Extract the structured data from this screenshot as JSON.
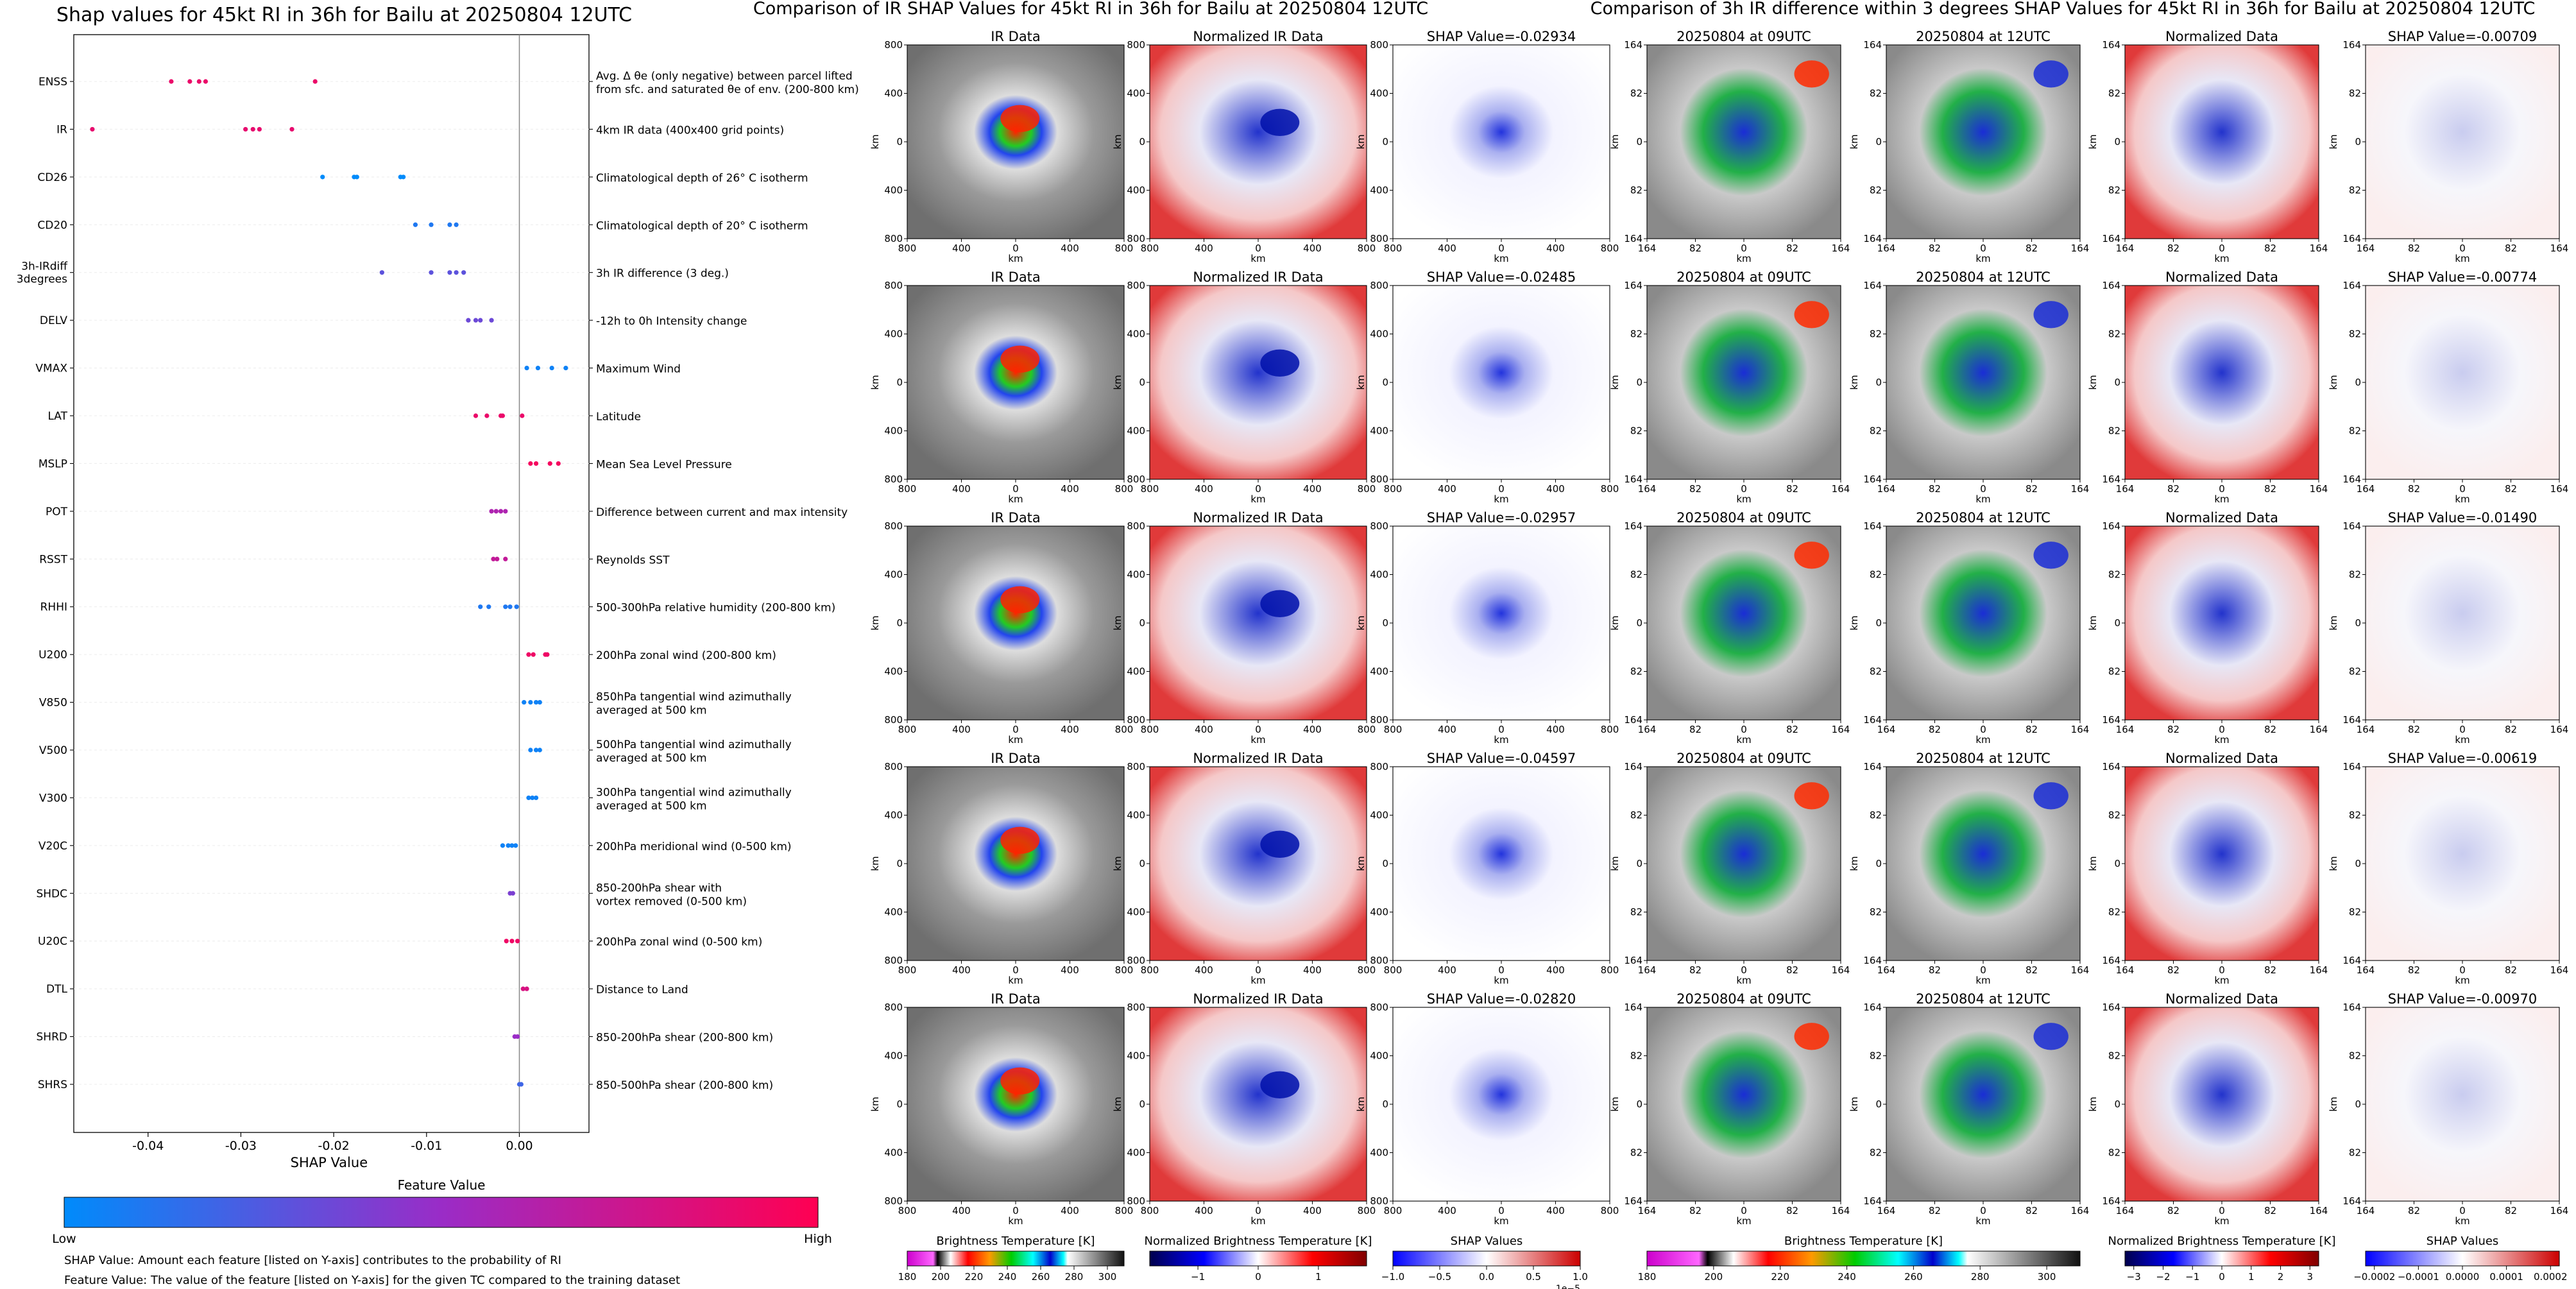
{
  "chart_data": [
    {
      "type": "scatter",
      "title": "Shap values for 45kt RI in 36h for Bailu at 20250804 12UTC",
      "xlabel": "SHAP Value",
      "xlim": [
        -0.048,
        0.0075
      ],
      "x_ticks": [
        "-0.04",
        "-0.03",
        "-0.02",
        "-0.01",
        "0.00"
      ],
      "x_tick_values": [
        -0.04,
        -0.03,
        -0.02,
        -0.01,
        0.0
      ],
      "features": [
        {
          "name": "ENSS",
          "desc": "Avg. Δ θe (only negative) between parcel lifted|from sfc. and saturated θe of env. (200-800 km)",
          "values": [
            -0.0375,
            -0.0355,
            -0.0345,
            -0.0338,
            -0.022
          ],
          "feature_level": 0.9
        },
        {
          "name": "IR",
          "desc": "4km IR data (400x400 grid points)",
          "values": [
            -0.046,
            -0.0295,
            -0.0287,
            -0.028,
            -0.0245
          ],
          "feature_level": 0.88
        },
        {
          "name": "CD26",
          "desc": "Climatological depth of 26° C isotherm",
          "values": [
            -0.0212,
            -0.0178,
            -0.0175,
            -0.0128,
            -0.0125
          ],
          "feature_level": 0.0
        },
        {
          "name": "CD20",
          "desc": "Climatological depth of 20° C isotherm",
          "values": [
            -0.0112,
            -0.0095,
            -0.0075,
            -0.0068
          ],
          "feature_level": 0.1
        },
        {
          "name": "3h-IRdiff|3degrees",
          "desc": "3h IR difference (3 deg.)",
          "values": [
            -0.0148,
            -0.0095,
            -0.0075,
            -0.0068,
            -0.006
          ],
          "feature_level": 0.3
        },
        {
          "name": "DELV",
          "desc": "-12h to 0h Intensity change",
          "values": [
            -0.0055,
            -0.0047,
            -0.0042,
            -0.003
          ],
          "feature_level": 0.35
        },
        {
          "name": "VMAX",
          "desc": "Maximum Wind",
          "values": [
            0.0008,
            0.002,
            0.0035,
            0.005
          ],
          "feature_level": 0.05
        },
        {
          "name": "LAT",
          "desc": "Latitude",
          "values": [
            -0.0047,
            -0.0035,
            -0.002,
            -0.0018,
            0.0003
          ],
          "feature_level": 0.9
        },
        {
          "name": "MSLP",
          "desc": "Mean Sea Level Pressure",
          "values": [
            0.0012,
            0.0018,
            0.0033,
            0.0042
          ],
          "feature_level": 0.95
        },
        {
          "name": "POT",
          "desc": "Difference between current and max intensity",
          "values": [
            -0.003,
            -0.0025,
            -0.002,
            -0.0015
          ],
          "feature_level": 0.6
        },
        {
          "name": "RSST",
          "desc": "Reynolds SST",
          "values": [
            -0.0028,
            -0.0024,
            -0.0015
          ],
          "feature_level": 0.7
        },
        {
          "name": "RHHI",
          "desc": "500-300hPa relative humidity (200-800 km)",
          "values": [
            -0.0042,
            -0.0033,
            -0.0015,
            -0.001,
            -0.0003
          ],
          "feature_level": 0.1
        },
        {
          "name": "U200",
          "desc": "200hPa zonal wind (200-800 km)",
          "values": [
            0.001,
            0.0015,
            0.0028,
            0.003
          ],
          "feature_level": 0.92
        },
        {
          "name": "V850",
          "desc": "850hPa tangential wind azimuthally|averaged at 500 km",
          "values": [
            0.0005,
            0.0012,
            0.0018,
            0.0022
          ],
          "feature_level": 0.05
        },
        {
          "name": "V500",
          "desc": "500hPa tangential wind azimuthally|averaged at 500 km",
          "values": [
            0.0012,
            0.0018,
            0.0022
          ],
          "feature_level": 0.05
        },
        {
          "name": "V300",
          "desc": "300hPa tangential wind azimuthally|averaged at 500 km",
          "values": [
            0.001,
            0.0014,
            0.0018
          ],
          "feature_level": 0.05
        },
        {
          "name": "V20C",
          "desc": "200hPa meridional wind (0-500 km)",
          "values": [
            -0.0018,
            -0.0012,
            -0.0008,
            -0.0004
          ],
          "feature_level": 0.05
        },
        {
          "name": "SHDC",
          "desc": "850-200hPa shear with|vortex removed (0-500 km)",
          "values": [
            -0.001,
            -0.0007
          ],
          "feature_level": 0.4
        },
        {
          "name": "U20C",
          "desc": "200hPa zonal wind (0-500 km)",
          "values": [
            -0.0014,
            -0.0008,
            -0.0002
          ],
          "feature_level": 0.92
        },
        {
          "name": "DTL",
          "desc": "Distance to Land",
          "values": [
            0.0004,
            0.0008
          ],
          "feature_level": 0.8
        },
        {
          "name": "SHRD",
          "desc": "850-200hPa shear (200-800 km)",
          "values": [
            -0.0005,
            -0.0002
          ],
          "feature_level": 0.5
        },
        {
          "name": "SHRS",
          "desc": "850-500hPa shear (200-800 km)",
          "values": [
            0.0,
            0.0002
          ],
          "feature_level": 0.2
        }
      ],
      "colorbar": {
        "label": "Feature Value",
        "low": "Low",
        "high": "High",
        "stops": [
          "#008bfb",
          "#9a2cc7",
          "#ff0052"
        ]
      },
      "captions": [
        "SHAP Value: Amount each feature [listed on Y-axis] contributes to the probability of RI",
        "Feature Value: The value of the feature [listed on Y-axis] for the given TC compared to the training dataset"
      ]
    },
    {
      "type": "heatmap",
      "title": "Comparison of IR SHAP Values for 45kt RI in 36h for Bailu at 20250804 12UTC",
      "rows": [
        {
          "panels": [
            "IR Data",
            "Normalized IR Data",
            "SHAP Value=-0.02934"
          ]
        },
        {
          "panels": [
            "IR Data",
            "Normalized IR Data",
            "SHAP Value=-0.02485"
          ]
        },
        {
          "panels": [
            "IR Data",
            "Normalized IR Data",
            "SHAP Value=-0.02957"
          ]
        },
        {
          "panels": [
            "IR Data",
            "Normalized IR Data",
            "SHAP Value=-0.04597"
          ]
        },
        {
          "panels": [
            "IR Data",
            "Normalized IR Data",
            "SHAP Value=-0.02820"
          ]
        }
      ],
      "xlabel": "km",
      "ylabel": "km",
      "x_ticks": [
        "800",
        "400",
        "0",
        "400",
        "800"
      ],
      "y_ticks": [
        "800",
        "400",
        "0",
        "400",
        "800"
      ],
      "colorbars": [
        {
          "label": "Brightness Temperature [K]",
          "ticks": [
            "180",
            "200",
            "220",
            "240",
            "260",
            "280",
            "300"
          ],
          "range": [
            180,
            310
          ]
        },
        {
          "label": "Normalized Brightness Temperature [K]",
          "ticks": [
            "−1",
            "0",
            "1"
          ],
          "range": [
            -1.8,
            1.8
          ]
        },
        {
          "label": "SHAP Values",
          "ticks": [
            "−1.0",
            "−0.5",
            "0.0",
            "0.5",
            "1.0"
          ],
          "range": [
            -1.0,
            1.0
          ],
          "multiplier": "1e−5"
        }
      ]
    },
    {
      "type": "heatmap",
      "title": "Comparison of 3h IR difference within 3 degrees SHAP Values for 45kt RI in 36h for Bailu at 20250804 12UTC",
      "rows": [
        {
          "panels": [
            "20250804 at 09UTC",
            "20250804 at 12UTC",
            "Normalized Data",
            "SHAP Value=-0.00709"
          ]
        },
        {
          "panels": [
            "20250804 at 09UTC",
            "20250804 at 12UTC",
            "Normalized Data",
            "SHAP Value=-0.00774"
          ]
        },
        {
          "panels": [
            "20250804 at 09UTC",
            "20250804 at 12UTC",
            "Normalized Data",
            "SHAP Value=-0.01490"
          ]
        },
        {
          "panels": [
            "20250804 at 09UTC",
            "20250804 at 12UTC",
            "Normalized Data",
            "SHAP Value=-0.00619"
          ]
        },
        {
          "panels": [
            "20250804 at 09UTC",
            "20250804 at 12UTC",
            "Normalized Data",
            "SHAP Value=-0.00970"
          ]
        }
      ],
      "xlabel": "km",
      "ylabel": "km",
      "x_ticks": [
        "164",
        "82",
        "0",
        "82",
        "164"
      ],
      "y_ticks": [
        "164",
        "82",
        "0",
        "82",
        "164"
      ],
      "colorbars": [
        {
          "label": "Brightness Temperature [K]",
          "ticks": [
            "180",
            "200",
            "220",
            "240",
            "260",
            "280",
            "300"
          ],
          "range": [
            180,
            310
          ]
        },
        {
          "label": "Normalized Brightness Temperature [K]",
          "ticks": [
            "−3",
            "−2",
            "−1",
            "0",
            "1",
            "2",
            "3"
          ],
          "range": [
            -3.3,
            3.3
          ]
        },
        {
          "label": "SHAP Values",
          "ticks": [
            "−0.0002",
            "−0.0001",
            "0.0000",
            "0.0001",
            "0.0002"
          ],
          "range": [
            -0.00022,
            0.00022
          ]
        }
      ]
    }
  ]
}
